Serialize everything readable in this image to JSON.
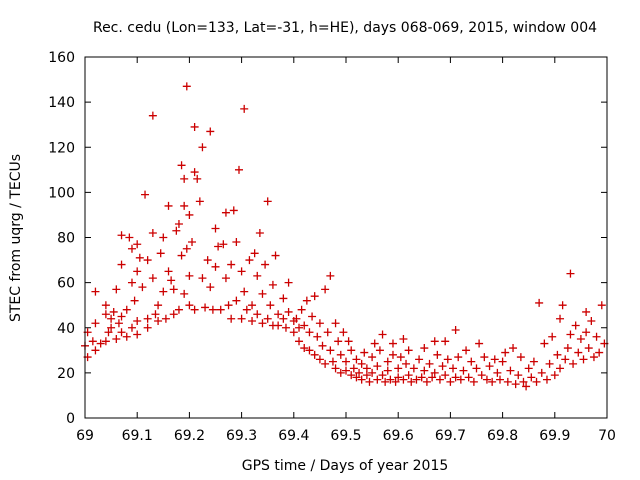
{
  "chart_data": {
    "type": "scatter",
    "title": "Rec. cedu (Lon=133, Lat=-31, h=HE), days 068-069, 2015, window 004",
    "xlabel": "GPS time / Days of year 2015",
    "ylabel": "STEC from uqrg / TECUs",
    "xlim": [
      69,
      70
    ],
    "ylim": [
      0,
      160
    ],
    "x_ticks": [
      69,
      69.1,
      69.2,
      69.3,
      69.4,
      69.5,
      69.6,
      69.7,
      69.8,
      69.9,
      70
    ],
    "x_tick_labels": [
      "69",
      "69.1",
      "69.2",
      "69.3",
      "69.4",
      "69.5",
      "69.6",
      "69.7",
      "69.8",
      "69.9",
      "70"
    ],
    "y_ticks": [
      0,
      20,
      40,
      60,
      80,
      100,
      120,
      140,
      160
    ],
    "y_tick_labels": [
      "0",
      "20",
      "40",
      "60",
      "80",
      "100",
      "120",
      "140",
      "160"
    ],
    "grid": false,
    "legend": false,
    "marker": "+",
    "marker_color": "#cc0000",
    "series": [
      {
        "name": "STEC",
        "points": [
          [
            69.0,
            32
          ],
          [
            69.005,
            38
          ],
          [
            69.005,
            27
          ],
          [
            69.015,
            34
          ],
          [
            69.02,
            30
          ],
          [
            69.02,
            42
          ],
          [
            69.02,
            56
          ],
          [
            69.03,
            33
          ],
          [
            69.04,
            46
          ],
          [
            69.04,
            50
          ],
          [
            69.04,
            34
          ],
          [
            69.045,
            38
          ],
          [
            69.05,
            44
          ],
          [
            69.05,
            40
          ],
          [
            69.055,
            47
          ],
          [
            69.06,
            35
          ],
          [
            69.06,
            57
          ],
          [
            69.065,
            42
          ],
          [
            69.07,
            38
          ],
          [
            69.07,
            45
          ],
          [
            69.07,
            68
          ],
          [
            69.07,
            81
          ],
          [
            69.08,
            36
          ],
          [
            69.08,
            48
          ],
          [
            69.085,
            80
          ],
          [
            69.09,
            75
          ],
          [
            69.09,
            40
          ],
          [
            69.09,
            60
          ],
          [
            69.095,
            52
          ],
          [
            69.1,
            37
          ],
          [
            69.1,
            43
          ],
          [
            69.1,
            65
          ],
          [
            69.1,
            77
          ],
          [
            69.105,
            71
          ],
          [
            69.11,
            58
          ],
          [
            69.115,
            99
          ],
          [
            69.12,
            44
          ],
          [
            69.12,
            40
          ],
          [
            69.12,
            70
          ],
          [
            69.13,
            134
          ],
          [
            69.13,
            82
          ],
          [
            69.13,
            62
          ],
          [
            69.135,
            46
          ],
          [
            69.14,
            43
          ],
          [
            69.14,
            50
          ],
          [
            69.145,
            73
          ],
          [
            69.15,
            80
          ],
          [
            69.15,
            56
          ],
          [
            69.155,
            44
          ],
          [
            69.16,
            94
          ],
          [
            69.16,
            65
          ],
          [
            69.165,
            61
          ],
          [
            69.17,
            46
          ],
          [
            69.17,
            57
          ],
          [
            69.175,
            83
          ],
          [
            69.18,
            86
          ],
          [
            69.18,
            48
          ],
          [
            69.185,
            72
          ],
          [
            69.185,
            112
          ],
          [
            69.19,
            106
          ],
          [
            69.19,
            94
          ],
          [
            69.19,
            55
          ],
          [
            69.195,
            75
          ],
          [
            69.195,
            147
          ],
          [
            69.2,
            90
          ],
          [
            69.2,
            63
          ],
          [
            69.2,
            50
          ],
          [
            69.205,
            78
          ],
          [
            69.21,
            109
          ],
          [
            69.21,
            129
          ],
          [
            69.21,
            48
          ],
          [
            69.215,
            106
          ],
          [
            69.22,
            96
          ],
          [
            69.225,
            62
          ],
          [
            69.225,
            120
          ],
          [
            69.23,
            49
          ],
          [
            69.235,
            70
          ],
          [
            69.24,
            127
          ],
          [
            69.24,
            58
          ],
          [
            69.245,
            48
          ],
          [
            69.25,
            84
          ],
          [
            69.25,
            67
          ],
          [
            69.255,
            76
          ],
          [
            69.26,
            48
          ],
          [
            69.265,
            77
          ],
          [
            69.27,
            91
          ],
          [
            69.27,
            62
          ],
          [
            69.275,
            50
          ],
          [
            69.28,
            68
          ],
          [
            69.28,
            44
          ],
          [
            69.285,
            92
          ],
          [
            69.29,
            78
          ],
          [
            69.29,
            52
          ],
          [
            69.295,
            110
          ],
          [
            69.3,
            65
          ],
          [
            69.3,
            44
          ],
          [
            69.305,
            137
          ],
          [
            69.305,
            56
          ],
          [
            69.31,
            48
          ],
          [
            69.315,
            70
          ],
          [
            69.32,
            43
          ],
          [
            69.32,
            50
          ],
          [
            69.325,
            73
          ],
          [
            69.33,
            63
          ],
          [
            69.33,
            46
          ],
          [
            69.335,
            82
          ],
          [
            69.34,
            42
          ],
          [
            69.34,
            55
          ],
          [
            69.345,
            68
          ],
          [
            69.35,
            96
          ],
          [
            69.35,
            44
          ],
          [
            69.355,
            50
          ],
          [
            69.36,
            41
          ],
          [
            69.36,
            59
          ],
          [
            69.365,
            72
          ],
          [
            69.37,
            46
          ],
          [
            69.37,
            41
          ],
          [
            69.38,
            53
          ],
          [
            69.38,
            44
          ],
          [
            69.385,
            40
          ],
          [
            69.39,
            60
          ],
          [
            69.39,
            47
          ],
          [
            69.4,
            38
          ],
          [
            69.4,
            43
          ],
          [
            69.405,
            44
          ],
          [
            69.41,
            34
          ],
          [
            69.41,
            40
          ],
          [
            69.415,
            48
          ],
          [
            69.42,
            31
          ],
          [
            69.42,
            41
          ],
          [
            69.425,
            52
          ],
          [
            69.43,
            38
          ],
          [
            69.43,
            30
          ],
          [
            69.435,
            45
          ],
          [
            69.44,
            54
          ],
          [
            69.44,
            28
          ],
          [
            69.445,
            36
          ],
          [
            69.45,
            42
          ],
          [
            69.45,
            26
          ],
          [
            69.455,
            32
          ],
          [
            69.46,
            57
          ],
          [
            69.46,
            24
          ],
          [
            69.465,
            38
          ],
          [
            69.47,
            30
          ],
          [
            69.47,
            63
          ],
          [
            69.475,
            25
          ],
          [
            69.48,
            22
          ],
          [
            69.48,
            42
          ],
          [
            69.485,
            34
          ],
          [
            69.49,
            20
          ],
          [
            69.49,
            28
          ],
          [
            69.495,
            38
          ],
          [
            69.5,
            21
          ],
          [
            69.5,
            25
          ],
          [
            69.505,
            34
          ],
          [
            69.51,
            19
          ],
          [
            69.51,
            30
          ],
          [
            69.515,
            22
          ],
          [
            69.52,
            18
          ],
          [
            69.52,
            26
          ],
          [
            69.525,
            20
          ],
          [
            69.53,
            17
          ],
          [
            69.53,
            24
          ],
          [
            69.535,
            29
          ],
          [
            69.54,
            19
          ],
          [
            69.54,
            22
          ],
          [
            69.545,
            16
          ],
          [
            69.55,
            27
          ],
          [
            69.55,
            20
          ],
          [
            69.555,
            33
          ],
          [
            69.56,
            17
          ],
          [
            69.56,
            23
          ],
          [
            69.565,
            30
          ],
          [
            69.57,
            19
          ],
          [
            69.57,
            37
          ],
          [
            69.575,
            16
          ],
          [
            69.58,
            25
          ],
          [
            69.58,
            21
          ],
          [
            69.585,
            17
          ],
          [
            69.59,
            33
          ],
          [
            69.59,
            28
          ],
          [
            69.595,
            16
          ],
          [
            69.6,
            22
          ],
          [
            69.6,
            18
          ],
          [
            69.605,
            27
          ],
          [
            69.61,
            35
          ],
          [
            69.61,
            17
          ],
          [
            69.615,
            24
          ],
          [
            69.62,
            19
          ],
          [
            69.62,
            30
          ],
          [
            69.625,
            16
          ],
          [
            69.63,
            22
          ],
          [
            69.635,
            17
          ],
          [
            69.64,
            26
          ],
          [
            69.645,
            18
          ],
          [
            69.65,
            31
          ],
          [
            69.65,
            21
          ],
          [
            69.655,
            16
          ],
          [
            69.66,
            24
          ],
          [
            69.665,
            18
          ],
          [
            69.67,
            34
          ],
          [
            69.67,
            20
          ],
          [
            69.675,
            28
          ],
          [
            69.68,
            17
          ],
          [
            69.685,
            23
          ],
          [
            69.69,
            34
          ],
          [
            69.69,
            19
          ],
          [
            69.695,
            26
          ],
          [
            69.7,
            16
          ],
          [
            69.705,
            22
          ],
          [
            69.71,
            39
          ],
          [
            69.71,
            18
          ],
          [
            69.715,
            27
          ],
          [
            69.72,
            17
          ],
          [
            69.725,
            21
          ],
          [
            69.73,
            30
          ],
          [
            69.735,
            18
          ],
          [
            69.74,
            25
          ],
          [
            69.745,
            16
          ],
          [
            69.75,
            22
          ],
          [
            69.755,
            33
          ],
          [
            69.76,
            19
          ],
          [
            69.765,
            27
          ],
          [
            69.77,
            17
          ],
          [
            69.775,
            23
          ],
          [
            69.78,
            16
          ],
          [
            69.785,
            26
          ],
          [
            69.79,
            20
          ],
          [
            69.795,
            17
          ],
          [
            69.8,
            25
          ],
          [
            69.805,
            29
          ],
          [
            69.81,
            16
          ],
          [
            69.815,
            21
          ],
          [
            69.82,
            31
          ],
          [
            69.825,
            15
          ],
          [
            69.83,
            19
          ],
          [
            69.835,
            27
          ],
          [
            69.84,
            16
          ],
          [
            69.845,
            14
          ],
          [
            69.85,
            22
          ],
          [
            69.855,
            18
          ],
          [
            69.86,
            25
          ],
          [
            69.865,
            16
          ],
          [
            69.87,
            51
          ],
          [
            69.875,
            20
          ],
          [
            69.88,
            33
          ],
          [
            69.885,
            17
          ],
          [
            69.89,
            24
          ],
          [
            69.895,
            36
          ],
          [
            69.9,
            19
          ],
          [
            69.905,
            28
          ],
          [
            69.91,
            44
          ],
          [
            69.91,
            22
          ],
          [
            69.915,
            50
          ],
          [
            69.92,
            26
          ],
          [
            69.925,
            31
          ],
          [
            69.93,
            64
          ],
          [
            69.93,
            37
          ],
          [
            69.935,
            24
          ],
          [
            69.94,
            41
          ],
          [
            69.945,
            29
          ],
          [
            69.95,
            35
          ],
          [
            69.955,
            26
          ],
          [
            69.96,
            47
          ],
          [
            69.96,
            38
          ],
          [
            69.965,
            31
          ],
          [
            69.97,
            43
          ],
          [
            69.975,
            27
          ],
          [
            69.98,
            36
          ],
          [
            69.985,
            29
          ],
          [
            69.99,
            50
          ],
          [
            69.995,
            33
          ]
        ]
      }
    ]
  }
}
